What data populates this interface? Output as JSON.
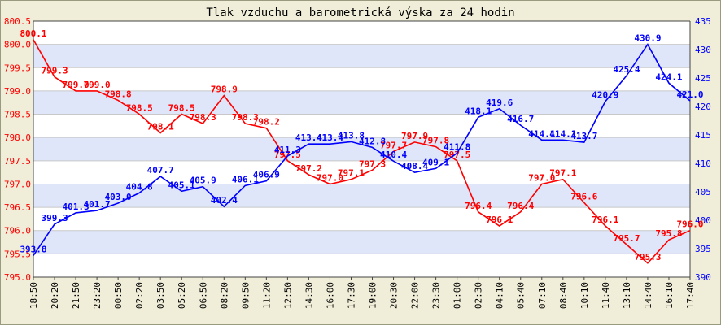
{
  "chart_data": {
    "type": "line",
    "title": "Tlak vzduchu a barometrická výska za 24 hodin",
    "xlabel": "",
    "ylabel_left": "",
    "ylabel_right": "",
    "ylim_left": [
      795.0,
      800.5
    ],
    "ylim_right": [
      390,
      435
    ],
    "left_ticks": [
      "795.0",
      "795.5",
      "796.0",
      "796.5",
      "797.0",
      "797.5",
      "798.0",
      "798.5",
      "799.0",
      "799.5",
      "800.0",
      "800.5"
    ],
    "right_ticks": [
      "390",
      "395",
      "400",
      "405",
      "410",
      "415",
      "420",
      "425",
      "430",
      "435"
    ],
    "categories": [
      "18:50",
      "20:20",
      "21:50",
      "23:20",
      "00:50",
      "02:20",
      "03:50",
      "05:20",
      "06:50",
      "08:20",
      "09:50",
      "11:20",
      "12:50",
      "14:30",
      "16:00",
      "17:30",
      "19:00",
      "20:30",
      "22:00",
      "23:30",
      "01:00",
      "02:30",
      "04:10",
      "05:40",
      "07:10",
      "08:40",
      "10:10",
      "11:40",
      "13:10",
      "14:40",
      "16:10",
      "17:40"
    ],
    "grid": true,
    "colors": {
      "pressure": "#ff0000",
      "altitude": "#0000ff",
      "background": "#f0eed8",
      "band": "#dfe6fa"
    },
    "series": [
      {
        "key": "pressure",
        "axis": "left",
        "values": [
          800.1,
          799.3,
          799.0,
          799.0,
          798.8,
          798.5,
          798.1,
          798.5,
          798.3,
          798.9,
          798.3,
          798.2,
          797.5,
          797.2,
          797.0,
          797.1,
          797.3,
          797.7,
          797.9,
          797.8,
          797.5,
          796.4,
          796.1,
          796.4,
          797.0,
          797.1,
          796.6,
          796.1,
          795.7,
          795.3,
          795.8,
          796.0
        ],
        "labels": [
          "800.1",
          "799.3",
          "799.0",
          "799.0",
          "798.8",
          "798.5",
          "798.1",
          "798.5",
          "798.3",
          "798.9",
          "798.3",
          "798.2",
          "797.5",
          "797.2",
          "797.0",
          "797.1",
          "797.3",
          "797.7",
          "797.9",
          "797.8",
          "797.5",
          "796.4",
          "796.1",
          "796.4",
          "797.0",
          "797.1",
          "796.6",
          "796.1",
          "795.7",
          "795.3",
          "795.8",
          "796.0"
        ]
      },
      {
        "key": "altitude",
        "axis": "right",
        "values": [
          393.8,
          399.3,
          401.3,
          401.7,
          403.0,
          404.8,
          407.7,
          405.1,
          405.9,
          402.4,
          406.1,
          406.9,
          411.3,
          413.4,
          413.4,
          413.8,
          412.8,
          410.4,
          408.4,
          409.1,
          411.8,
          418.1,
          419.6,
          416.7,
          414.1,
          414.1,
          413.7,
          420.9,
          425.4,
          430.9,
          424.1,
          421.0
        ],
        "labels": [
          "393.8",
          "399.3",
          "401.3",
          "401.7",
          "403.0",
          "404.8",
          "407.7",
          "405.1",
          "405.9",
          "402.4",
          "406.1",
          "406.9",
          "411.3",
          "413.4",
          "413.4",
          "413.8",
          "412.8",
          "410.4",
          "408.4",
          "409.1",
          "411.8",
          "418.1",
          "419.6",
          "416.7",
          "414.1",
          "414.1",
          "413.7",
          "420.9",
          "425.4",
          "430.9",
          "424.1",
          "421.0"
        ]
      }
    ]
  }
}
